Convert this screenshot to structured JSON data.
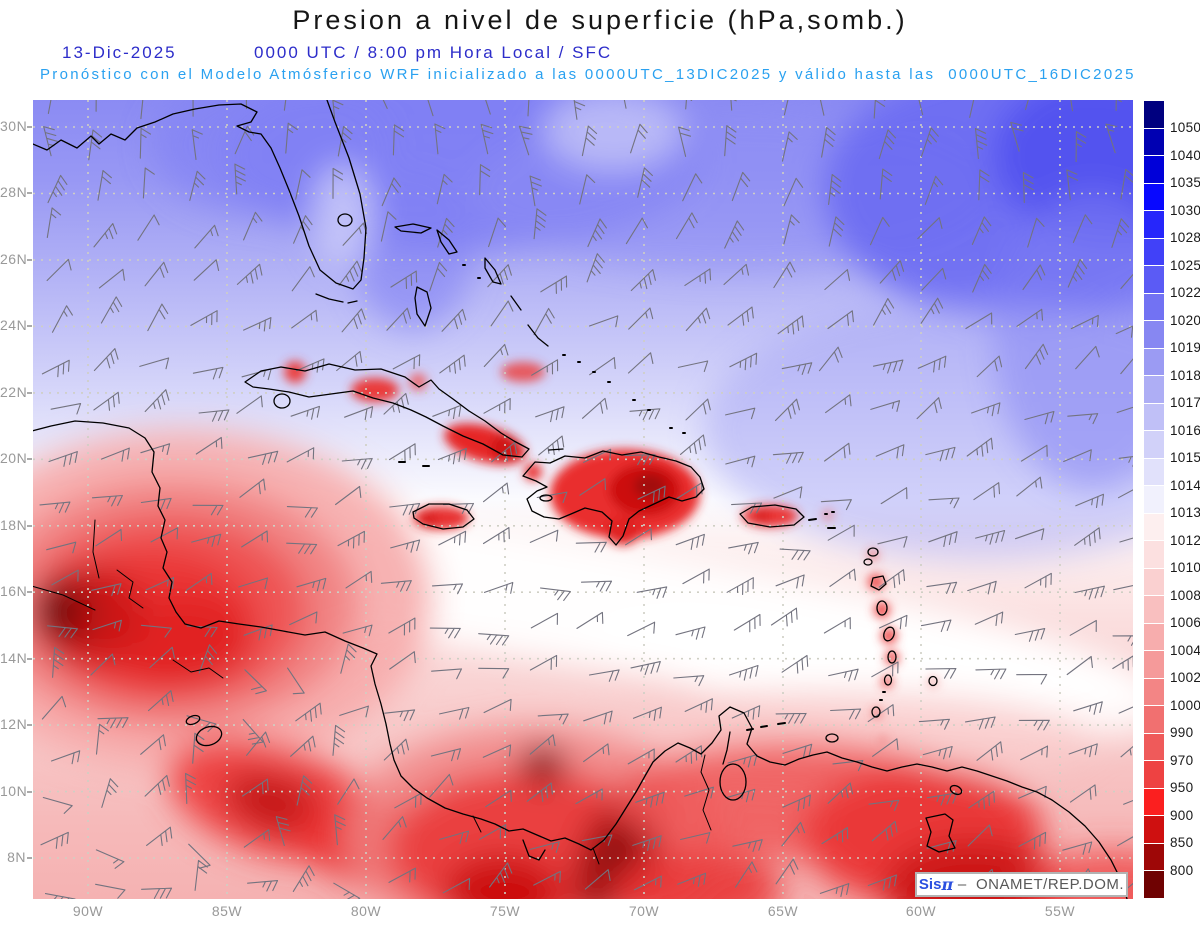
{
  "header": {
    "title": "Presion a nivel de superficie (hPa,somb.)",
    "date": "13-Dic-2025",
    "valid_time": "0000 UTC / 8:00 pm Hora Local / SFC",
    "forecast": "Pronóstico con el Modelo Atmósferico WRF inicializado a las 0000UTC_13DIC2025 y válido hasta las  0000UTC_16DIC2025"
  },
  "map": {
    "lat_labels": [
      "30N",
      "28N",
      "26N",
      "24N",
      "22N",
      "20N",
      "18N",
      "16N",
      "14N",
      "12N",
      "10N",
      "8N"
    ],
    "lon_labels": [
      "90W",
      "85W",
      "80W",
      "75W",
      "70W",
      "65W",
      "60W",
      "55W"
    ]
  },
  "colorbar": {
    "values": [
      "1050",
      "1040",
      "1035",
      "1030",
      "1028",
      "1025",
      "1022",
      "1020",
      "1019",
      "1018",
      "1017",
      "1016",
      "1015",
      "1014",
      "1013",
      "1012",
      "1010",
      "1008",
      "1006",
      "1004",
      "1002",
      "1000",
      "990",
      "970",
      "950",
      "900",
      "850",
      "800"
    ],
    "colors": [
      "#00007f",
      "#0000b2",
      "#0000d9",
      "#0808ff",
      "#2626fb",
      "#4141f8",
      "#5b5bf5",
      "#7272f3",
      "#8787f2",
      "#9b9bf3",
      "#aeaef5",
      "#c0c0f7",
      "#d1d1f9",
      "#e1e1fb",
      "#f1f1fd",
      "#fdefef",
      "#fce0e0",
      "#fad0d0",
      "#f9bfbf",
      "#f7adad",
      "#f59a9a",
      "#f38585",
      "#f17070",
      "#ef5a5a",
      "#ee4242",
      "#fb1f1f",
      "#cf1010",
      "#9e0707",
      "#6f0202"
    ]
  },
  "watermark": {
    "brand": "Sis",
    "symbol": "π",
    "org": " –  ONAMET/REP.DOM."
  },
  "colors": {
    "title_text": "#161616",
    "date_blue": "#2d2dca",
    "forecast_cyan": "#2aa1f0",
    "axis_gray": "#999999",
    "barb_gray": "#73737f",
    "coast_black": "#000000"
  }
}
